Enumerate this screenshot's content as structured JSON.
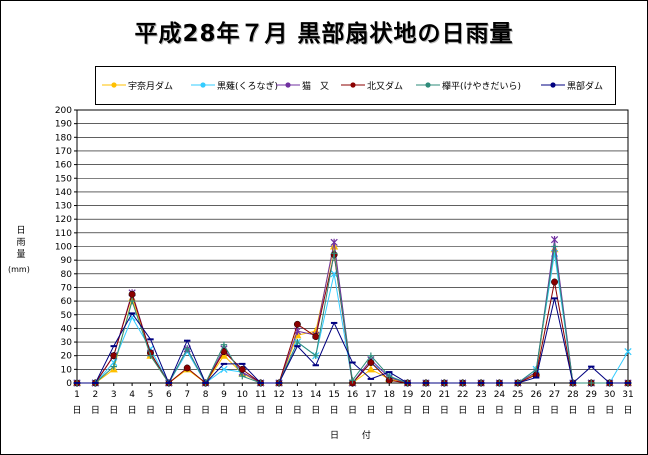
{
  "title": "平成28年７月 黒部扇状地の日雨量",
  "chart_data": {
    "type": "line",
    "title": "平成28年７月 黒部扇状地の日雨量",
    "ylabel": "日雨量",
    "yunit": "(mm)",
    "xlabel": "日 付",
    "ylim": [
      0,
      200
    ],
    "ytick_step": 10,
    "grid": true,
    "legend_position": "top",
    "x": [
      1,
      2,
      3,
      4,
      5,
      6,
      7,
      8,
      9,
      10,
      11,
      12,
      13,
      14,
      15,
      16,
      17,
      18,
      19,
      20,
      21,
      22,
      23,
      24,
      25,
      26,
      27,
      28,
      29,
      30,
      31
    ],
    "x_unit": "日",
    "series": [
      {
        "name": "宇奈月ダム",
        "color": "#FFC000",
        "marker": "triangle",
        "values": [
          0,
          0,
          10,
          62,
          20,
          0,
          10,
          0,
          20,
          7,
          0,
          0,
          35,
          38,
          100,
          0,
          10,
          3,
          0,
          0,
          0,
          0,
          0,
          0,
          0,
          7,
          98,
          0,
          0,
          0,
          0
        ]
      },
      {
        "name": "黒薙(くろなぎ)",
        "color": "#33CCFF",
        "marker": "x",
        "values": [
          0,
          0,
          15,
          48,
          25,
          0,
          23,
          0,
          10,
          8,
          0,
          0,
          30,
          20,
          80,
          0,
          15,
          5,
          0,
          0,
          0,
          0,
          0,
          0,
          0,
          10,
          95,
          0,
          0,
          0,
          23
        ]
      },
      {
        "name": "猫　又",
        "color": "#7030A0",
        "marker": "star",
        "values": [
          0,
          0,
          20,
          66,
          22,
          0,
          25,
          0,
          25,
          8,
          0,
          0,
          38,
          35,
          103,
          0,
          17,
          4,
          0,
          0,
          0,
          0,
          0,
          0,
          0,
          8,
          105,
          0,
          0,
          0,
          0
        ]
      },
      {
        "name": "北又ダム",
        "color": "#8B0000",
        "marker": "circle",
        "values": [
          0,
          0,
          20,
          65,
          22,
          0,
          11,
          0,
          23,
          10,
          0,
          0,
          43,
          34,
          94,
          0,
          15,
          2,
          0,
          0,
          0,
          0,
          0,
          0,
          0,
          6,
          74,
          0,
          0,
          0,
          0
        ]
      },
      {
        "name": "欅平(けやきだいら)",
        "color": "#2E8B7A",
        "marker": "plus",
        "values": [
          0,
          0,
          12,
          60,
          20,
          0,
          25,
          0,
          28,
          5,
          0,
          0,
          30,
          20,
          95,
          2,
          20,
          5,
          0,
          0,
          0,
          0,
          0,
          0,
          0,
          10,
          100,
          0,
          0,
          0,
          0
        ]
      },
      {
        "name": "黒部ダム",
        "color": "#000080",
        "marker": "dash",
        "values": [
          0,
          0,
          27,
          51,
          32,
          0,
          31,
          0,
          14,
          14,
          0,
          0,
          27,
          13,
          44,
          15,
          3,
          8,
          0,
          0,
          0,
          0,
          0,
          0,
          0,
          4,
          62,
          0,
          12,
          0,
          0
        ]
      }
    ]
  }
}
